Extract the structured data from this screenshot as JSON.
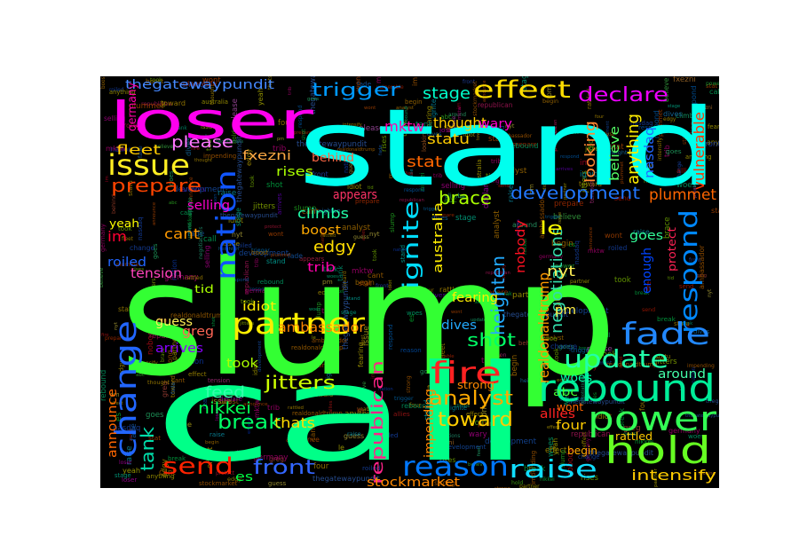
{
  "background_color": "#000000",
  "words": [
    {
      "text": "slump",
      "color": "#33ff33"
    },
    {
      "text": "call",
      "color": "#00ff88"
    },
    {
      "text": "stand",
      "color": "#00ffee"
    },
    {
      "text": "loser",
      "color": "#ff00ee"
    },
    {
      "text": "partner",
      "color": "#ffee00"
    },
    {
      "text": "rebound",
      "color": "#00ee99"
    },
    {
      "text": "power",
      "color": "#33ff55"
    },
    {
      "text": "hold",
      "color": "#66ff22"
    },
    {
      "text": "fade",
      "color": "#2288ff"
    },
    {
      "text": "change",
      "color": "#2266ff"
    },
    {
      "text": "nation",
      "color": "#1155ff"
    },
    {
      "text": "reason",
      "color": "#0077ff"
    },
    {
      "text": "effect",
      "color": "#ffdd00"
    },
    {
      "text": "issue",
      "color": "#ffee22"
    },
    {
      "text": "respond",
      "color": "#0088ff"
    },
    {
      "text": "update",
      "color": "#22ffaa"
    },
    {
      "text": "fire",
      "color": "#ff2222"
    },
    {
      "text": "raise",
      "color": "#11ddff"
    },
    {
      "text": "send",
      "color": "#ff2200"
    },
    {
      "text": "ignite",
      "color": "#00ddff"
    },
    {
      "text": "trigger",
      "color": "#0099ff"
    },
    {
      "text": "declare",
      "color": "#ee00ff"
    },
    {
      "text": "development",
      "color": "#2277ff"
    },
    {
      "text": "prepare",
      "color": "#ff4400"
    },
    {
      "text": "analyst",
      "color": "#ffaa00"
    },
    {
      "text": "toward",
      "color": "#ffcc00"
    },
    {
      "text": "shot",
      "color": "#00ff66"
    },
    {
      "text": "front",
      "color": "#3366ff"
    },
    {
      "text": "break",
      "color": "#00ff66"
    },
    {
      "text": "tank",
      "color": "#00ddaa"
    },
    {
      "text": "republican",
      "color": "#ff2288"
    },
    {
      "text": "intensify",
      "color": "#ffcc00"
    },
    {
      "text": "plummet",
      "color": "#ff6600"
    },
    {
      "text": "brace",
      "color": "#aaff00"
    },
    {
      "text": "stage",
      "color": "#00ffcc"
    },
    {
      "text": "thegatewaypundit",
      "color": "#4488ff"
    },
    {
      "text": "stockmarket",
      "color": "#ff8800"
    },
    {
      "text": "nikkei",
      "color": "#00ff55"
    },
    {
      "text": "jitters",
      "color": "#ccff00"
    },
    {
      "text": "heighten",
      "color": "#22aaff"
    },
    {
      "text": "negotiations",
      "color": "#33ddaa"
    },
    {
      "text": "realdonaldtrump",
      "color": "#ff9900"
    },
    {
      "text": "australia",
      "color": "#ffee00"
    },
    {
      "text": "looking",
      "color": "#ff8833"
    },
    {
      "text": "anything",
      "color": "#ffee00"
    },
    {
      "text": "believe",
      "color": "#55ff66"
    },
    {
      "text": "nasdaq",
      "color": "#2266ff"
    },
    {
      "text": "vulnerable",
      "color": "#ff3300"
    },
    {
      "text": "mktw",
      "color": "#ff00aa"
    },
    {
      "text": "statu",
      "color": "#ffcc00"
    },
    {
      "text": "stat",
      "color": "#ff6600"
    },
    {
      "text": "fleet",
      "color": "#ffcc00"
    },
    {
      "text": "please",
      "color": "#ff77ff"
    },
    {
      "text": "fxezni",
      "color": "#ffaa44"
    },
    {
      "text": "rises",
      "color": "#aaff00"
    },
    {
      "text": "behind",
      "color": "#ff6644"
    },
    {
      "text": "thought",
      "color": "#ffcc00"
    },
    {
      "text": "wary",
      "color": "#ff00cc"
    },
    {
      "text": "nobody",
      "color": "#ff1122"
    },
    {
      "text": "le",
      "color": "#ffff00"
    },
    {
      "text": "nyt",
      "color": "#ffee55"
    },
    {
      "text": "goes",
      "color": "#33ff99"
    },
    {
      "text": "enough",
      "color": "#0044ff"
    },
    {
      "text": "protect",
      "color": "#ff2255"
    },
    {
      "text": "climbs",
      "color": "#22ffaa"
    },
    {
      "text": "boost",
      "color": "#ffaa00"
    },
    {
      "text": "edgy",
      "color": "#ffdd00"
    },
    {
      "text": "trib",
      "color": "#ff00aa"
    },
    {
      "text": "tension",
      "color": "#ff44bb"
    },
    {
      "text": "cant",
      "color": "#ff9900"
    },
    {
      "text": "im",
      "color": "#ff0033"
    },
    {
      "text": "tid",
      "color": "#aaff00"
    },
    {
      "text": "guess",
      "color": "#ffee55"
    },
    {
      "text": "greg",
      "color": "#ff6655"
    },
    {
      "text": "arrives",
      "color": "#8800ff"
    },
    {
      "text": "ambassador",
      "color": "#ff8800"
    },
    {
      "text": "idiot",
      "color": "#ffee00"
    },
    {
      "text": "dives",
      "color": "#22aaff"
    },
    {
      "text": "fearing",
      "color": "#ffee00"
    },
    {
      "text": "pm",
      "color": "#ffee44"
    },
    {
      "text": "woes",
      "color": "#00ffaa"
    },
    {
      "text": "abc",
      "color": "#44ff33"
    },
    {
      "text": "feed",
      "color": "#33ffaa"
    },
    {
      "text": "took",
      "color": "#aaff00"
    },
    {
      "text": "thats",
      "color": "#ffdd00"
    },
    {
      "text": "four",
      "color": "#ffcc00"
    },
    {
      "text": "allies",
      "color": "#ff2222"
    },
    {
      "text": "wont",
      "color": "#ff6600"
    },
    {
      "text": "begin",
      "color": "#ffaa00"
    },
    {
      "text": "around",
      "color": "#44ffaa"
    },
    {
      "text": "rattled",
      "color": "#ffcc00"
    },
    {
      "text": "strong",
      "color": "#ff8800"
    },
    {
      "text": "impending",
      "color": "#ff8800"
    },
    {
      "text": "es",
      "color": "#00ff44"
    },
    {
      "text": "announce",
      "color": "#ff6600"
    },
    {
      "text": "appears",
      "color": "#ff3366"
    },
    {
      "text": "germany",
      "color": "#ff00aa"
    },
    {
      "text": "selling",
      "color": "#ff00cc"
    },
    {
      "text": "yeah",
      "color": "#ffff00"
    },
    {
      "text": "roiled",
      "color": "#2266ff"
    }
  ]
}
